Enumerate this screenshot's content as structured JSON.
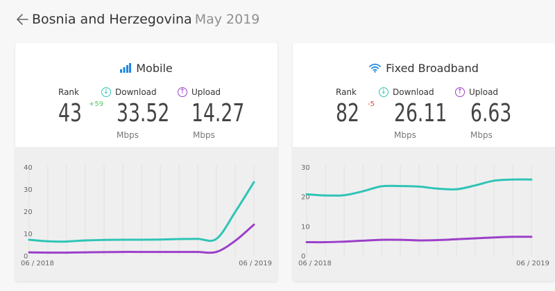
{
  "header": {
    "country": "Bosnia and Herzegovina",
    "month": "May 2019",
    "back_icon": "arrow-left-icon"
  },
  "colors": {
    "download": "#2ec4b6",
    "upload": "#9b3fc9",
    "rank_up": "#5bc46b",
    "rank_down": "#e2483d"
  },
  "mobile": {
    "title": "Mobile",
    "icon": "signal-bars-icon",
    "rank_label": "Rank",
    "rank": "43",
    "rank_change": "+59",
    "download_label": "Download",
    "download": "33.52",
    "download_unit": "Mbps",
    "upload_label": "Upload",
    "upload": "14.27",
    "upload_unit": "Mbps"
  },
  "fixed": {
    "title": "Fixed Broadband",
    "icon": "wifi-icon",
    "rank_label": "Rank",
    "rank": "82",
    "rank_change": "-5",
    "download_label": "Download",
    "download": "26.11",
    "download_unit": "Mbps",
    "upload_label": "Upload",
    "upload": "6.63",
    "upload_unit": "Mbps"
  },
  "chart_data": [
    {
      "type": "line",
      "title": "",
      "x": [
        "06 / 2018",
        "07 / 2018",
        "08 / 2018",
        "09 / 2018",
        "10 / 2018",
        "11 / 2018",
        "12 / 2018",
        "01 / 2019",
        "02 / 2019",
        "03 / 2019",
        "04 / 2019",
        "05 / 2019",
        "06 / 2019"
      ],
      "x_tick_labels": [
        "06 / 2018",
        "06 / 2019"
      ],
      "y_ticks": [
        0,
        10,
        20,
        30,
        40
      ],
      "ylim": [
        0,
        40
      ],
      "grid": "vertical",
      "series": [
        {
          "key": "download",
          "values": [
            7.5,
            6.8,
            6.7,
            7.2,
            7.4,
            7.5,
            7.5,
            7.6,
            7.8,
            7.9,
            7.9,
            20.0,
            33.5
          ]
        },
        {
          "key": "upload",
          "values": [
            1.8,
            1.7,
            1.7,
            1.8,
            1.9,
            2.0,
            2.0,
            2.0,
            2.0,
            2.0,
            2.0,
            7.0,
            14.3
          ]
        }
      ]
    },
    {
      "type": "line",
      "title": "",
      "x": [
        "06 / 2018",
        "07 / 2018",
        "08 / 2018",
        "09 / 2018",
        "10 / 2018",
        "11 / 2018",
        "12 / 2018",
        "01 / 2019",
        "02 / 2019",
        "03 / 2019",
        "04 / 2019",
        "05 / 2019",
        "06 / 2019"
      ],
      "x_tick_labels": [
        "06 / 2018",
        "06 / 2019"
      ],
      "y_ticks": [
        0,
        10,
        20,
        30
      ],
      "ylim": [
        0,
        30
      ],
      "grid": "vertical",
      "series": [
        {
          "key": "download",
          "values": [
            21.0,
            20.6,
            20.7,
            22.0,
            23.7,
            23.8,
            23.6,
            22.9,
            22.7,
            24.0,
            25.6,
            26.0,
            26.0
          ]
        },
        {
          "key": "upload",
          "values": [
            4.8,
            4.8,
            5.0,
            5.3,
            5.6,
            5.6,
            5.4,
            5.5,
            5.8,
            6.1,
            6.4,
            6.6,
            6.6
          ]
        }
      ]
    }
  ]
}
